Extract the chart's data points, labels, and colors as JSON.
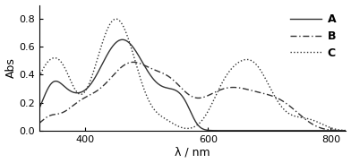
{
  "title": "",
  "xlabel": "λ / nm",
  "ylabel": "Abs",
  "xlim": [
    325,
    825
  ],
  "ylim": [
    0.0,
    0.9
  ],
  "yticks": [
    0.0,
    0.2,
    0.4,
    0.6,
    0.8
  ],
  "xticks": [
    400,
    600,
    800
  ],
  "background_color": "#ffffff",
  "line_color": "#333333",
  "legend_labels": [
    "A",
    "B",
    "C"
  ],
  "legend_styles": [
    "solid",
    "dashdot",
    "dotted"
  ]
}
